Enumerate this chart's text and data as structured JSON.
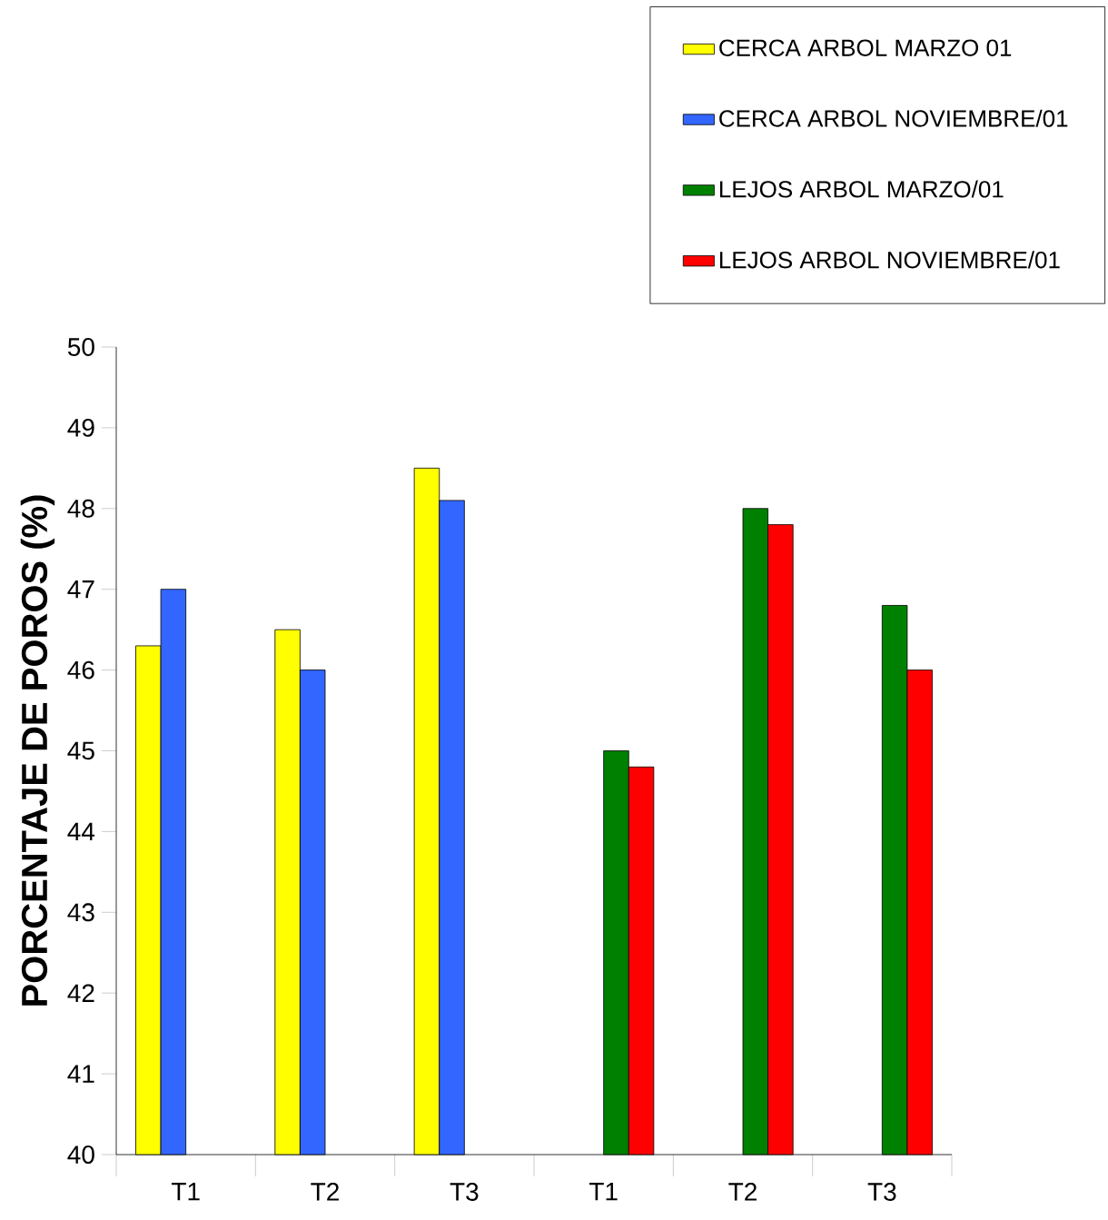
{
  "chart_data": {
    "type": "bar",
    "ylabel": "PORCENTAJE DE POROS (%)",
    "categories": [
      "T1",
      "T2",
      "T3",
      "T1",
      "T2",
      "T3"
    ],
    "series": [
      {
        "name": "CERCA ARBOL MARZO 01",
        "color": "#ffff00",
        "values": [
          46.3,
          46.5,
          48.5,
          null,
          null,
          null
        ]
      },
      {
        "name": "CERCA ARBOL NOVIEMBRE/01",
        "color": "#3366ff",
        "values": [
          47.0,
          46.0,
          48.1,
          null,
          null,
          null
        ]
      },
      {
        "name": "LEJOS ARBOL MARZO/01",
        "color": "#008000",
        "values": [
          null,
          null,
          null,
          45.0,
          48.0,
          46.8
        ]
      },
      {
        "name": "LEJOS ARBOL NOVIEMBRE/01",
        "color": "#ff0000",
        "values": [
          null,
          null,
          null,
          44.8,
          47.8,
          46.0
        ]
      }
    ],
    "ylim": [
      40,
      50
    ],
    "yticks": [
      40,
      41,
      42,
      43,
      44,
      45,
      46,
      47,
      48,
      49,
      50
    ],
    "legend": "top right"
  }
}
